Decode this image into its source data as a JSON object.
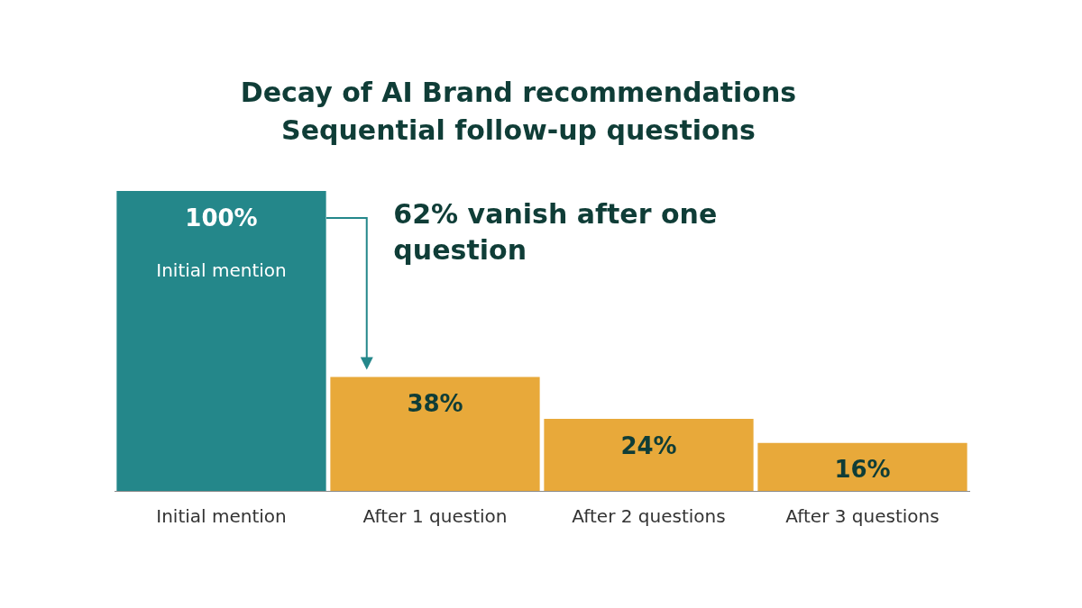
{
  "chart_data": {
    "type": "bar",
    "title": "Decay of AI Brand recommendations\nSequential follow-up questions",
    "categories": [
      "Initial mention",
      "After 1 question",
      "After 2 questions",
      "After 3 questions"
    ],
    "values": [
      100,
      38,
      24,
      16
    ],
    "value_labels": [
      "100%",
      "38%",
      "24%",
      "16%"
    ],
    "colors": [
      "#24878a",
      "#e8a93a",
      "#e8a93a",
      "#e8a93a"
    ],
    "annotations": [
      "Initial mention",
      "62% vanish after one question"
    ],
    "grid": false,
    "legend": false
  }
}
